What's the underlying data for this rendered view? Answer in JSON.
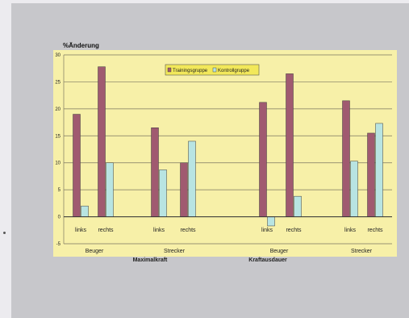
{
  "chart_data": {
    "type": "bar",
    "title": "",
    "ylabel": "%Änderung",
    "xlabel": "",
    "ylim": [
      -5,
      30
    ],
    "yticks": [
      -5,
      0,
      5,
      10,
      15,
      20,
      25,
      30
    ],
    "grid": true,
    "legend_position": "top-center",
    "categories": [
      "links",
      "rechts",
      "links",
      "rechts",
      "links",
      "rechts",
      "links",
      "rechts"
    ],
    "subgroups": [
      "Beuger",
      "Strecker",
      "Beuger",
      "Strecker"
    ],
    "groups": [
      "Maximalkraft",
      "Kraftausdauer"
    ],
    "series": [
      {
        "name": "Trainingsgruppe",
        "color": "#a05a70",
        "values": [
          19,
          27.8,
          16.5,
          10,
          21.2,
          26.5,
          21.5,
          15.5
        ]
      },
      {
        "name": "Kontrollgruppe",
        "color": "#b8e4e2",
        "values": [
          2,
          10,
          8.7,
          14,
          -1.7,
          3.8,
          10.3,
          17.3
        ]
      }
    ],
    "plot_bg": "#f7f0a8",
    "legend_bg": "#f2e85a"
  }
}
